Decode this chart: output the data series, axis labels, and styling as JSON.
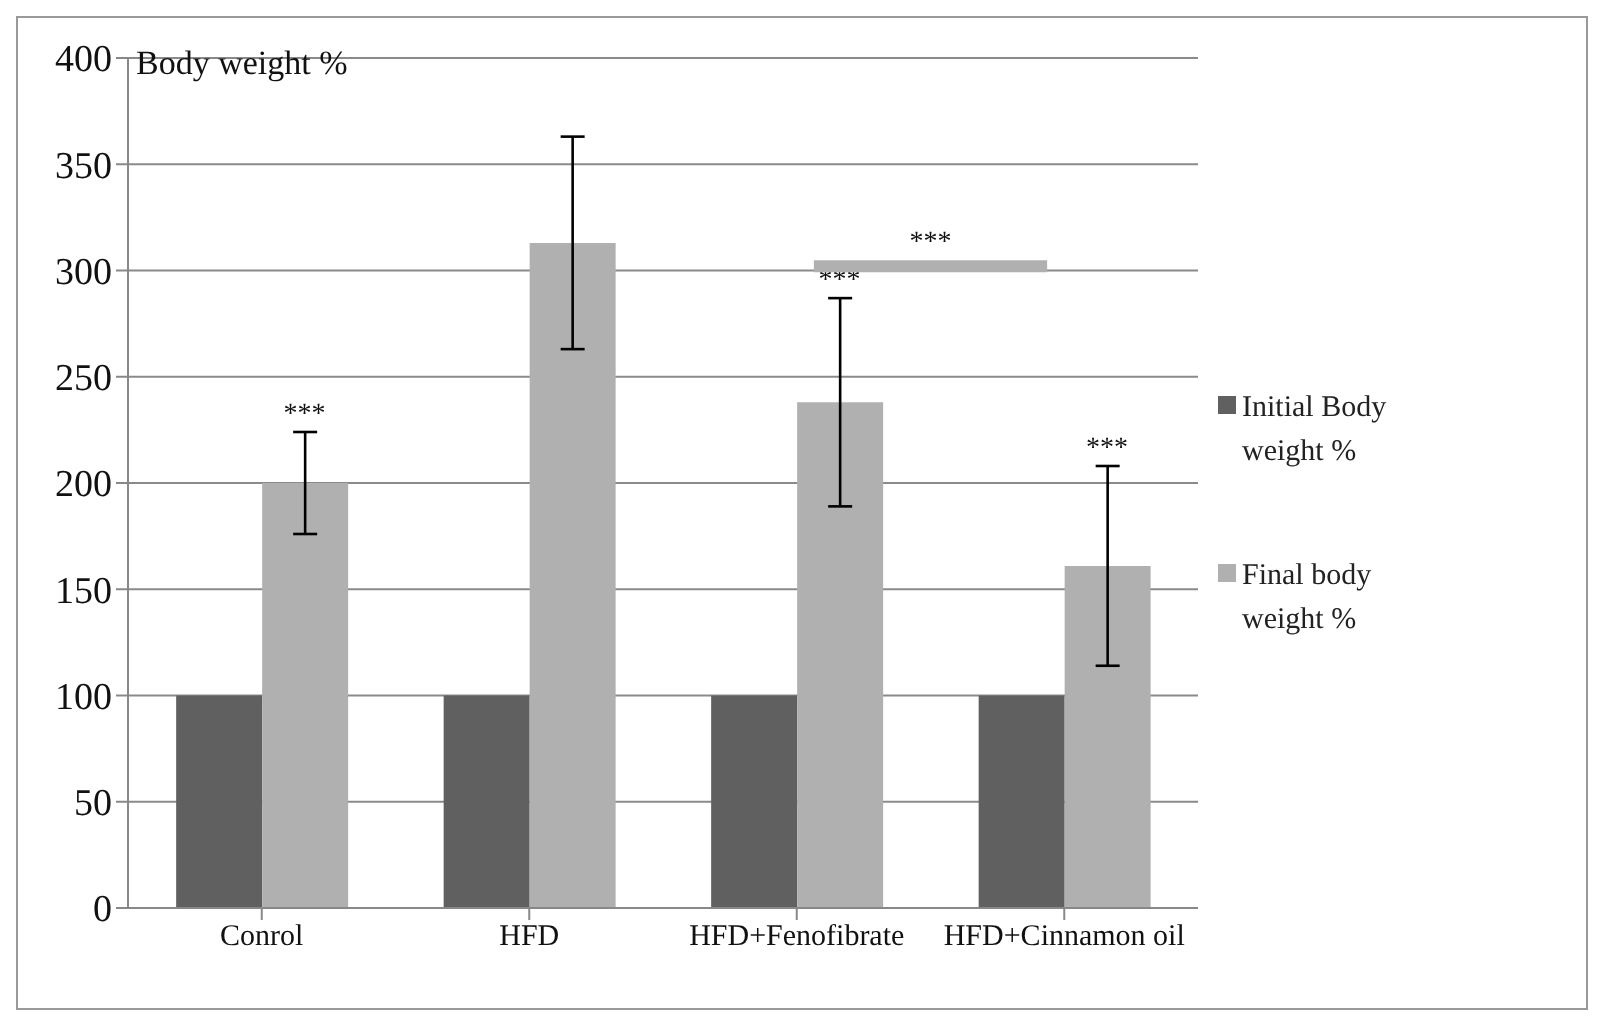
{
  "chart_data": {
    "type": "bar",
    "ylabel": "Body weight %",
    "categories": [
      "Conrol",
      "HFD",
      "HFD+Fenofibrate",
      "HFD+Cinnamon oil"
    ],
    "series": [
      {
        "name": "Initial Body weight %",
        "color": "#606060",
        "values": [
          100,
          100,
          100,
          100
        ]
      },
      {
        "name": "Final body weight %",
        "color": "#b0b0b0",
        "values": [
          200,
          313,
          238,
          161
        ],
        "errors": [
          24,
          50,
          49,
          47
        ]
      }
    ],
    "ylim": [
      0,
      400
    ],
    "yticks": [
      0,
      50,
      100,
      150,
      200,
      250,
      300,
      350,
      400
    ],
    "grid": "y",
    "legend": "right",
    "annotations": [
      "***",
      "***",
      "***",
      "***"
    ]
  }
}
